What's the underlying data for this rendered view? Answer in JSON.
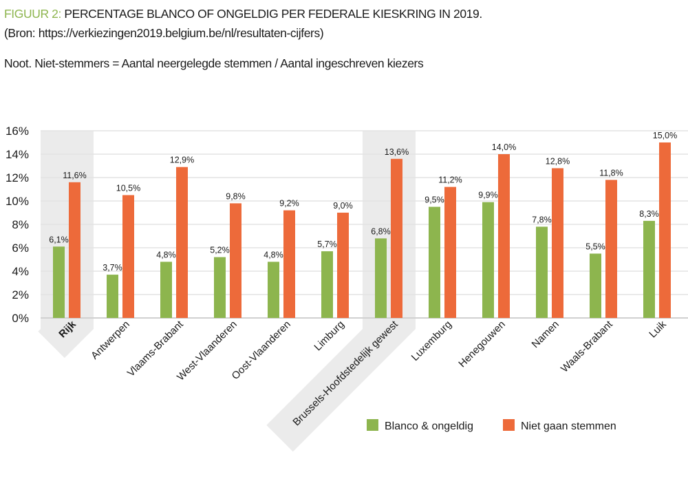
{
  "header": {
    "figure_label": "FIGUUR 2:",
    "title": " PERCENTAGE BLANCO OF ONGELDIG PER FEDERALE KIESKRING IN 2019.",
    "source": "(Bron: https://verkiezingen2019.belgium.be/nl/resultaten-cijfers)",
    "note": "Noot. Niet-stemmers = Aantal neergelegde stemmen / Aantal ingeschreven kiezers"
  },
  "chart_data": {
    "type": "bar",
    "title": "PERCENTAGE BLANCO OF ONGELDIG PER FEDERALE KIESKRING IN 2019.",
    "xlabel": "",
    "ylabel": "",
    "ylim": [
      0,
      16
    ],
    "yticks": [
      "0%",
      "2%",
      "4%",
      "6%",
      "8%",
      "10%",
      "12%",
      "14%",
      "16%"
    ],
    "grid": true,
    "legend_position": "bottom-right",
    "categories": [
      "Rijk",
      "Antwerpen",
      "Vlaams-Brabant",
      "West-Vlaanderen",
      "Oost-Vlaanderen",
      "Limburg",
      "Brussels-Hoofdstedelijk gewest",
      "Luxemburg",
      "Henegouwen",
      "Namen",
      "Waals-Brabant",
      "Luik"
    ],
    "highlighted_categories": [
      "Rijk",
      "Brussels-Hoofdstedelijk gewest"
    ],
    "series": [
      {
        "name": "Blanco & ongeldig",
        "color": "#8db54e",
        "values": [
          6.1,
          3.7,
          4.8,
          5.2,
          4.8,
          5.7,
          6.8,
          9.5,
          9.9,
          7.8,
          5.5,
          8.3
        ],
        "labels": [
          "6,1%",
          "3,7%",
          "4,8%",
          "5,2%",
          "4,8%",
          "5,7%",
          "6,8%",
          "9,5%",
          "9,9%",
          "7,8%",
          "5,5%",
          "8,3%"
        ]
      },
      {
        "name": "Niet gaan stemmen",
        "color": "#ed6a3a",
        "values": [
          11.6,
          10.5,
          12.9,
          9.8,
          9.2,
          9.0,
          13.6,
          11.2,
          14.0,
          12.8,
          11.8,
          15.0
        ],
        "labels": [
          "11,6%",
          "10,5%",
          "12,9%",
          "9,8%",
          "9,2%",
          "9,0%",
          "13,6%",
          "11,2%",
          "14,0%",
          "12,8%",
          "11,8%",
          "15,0%"
        ]
      }
    ]
  }
}
